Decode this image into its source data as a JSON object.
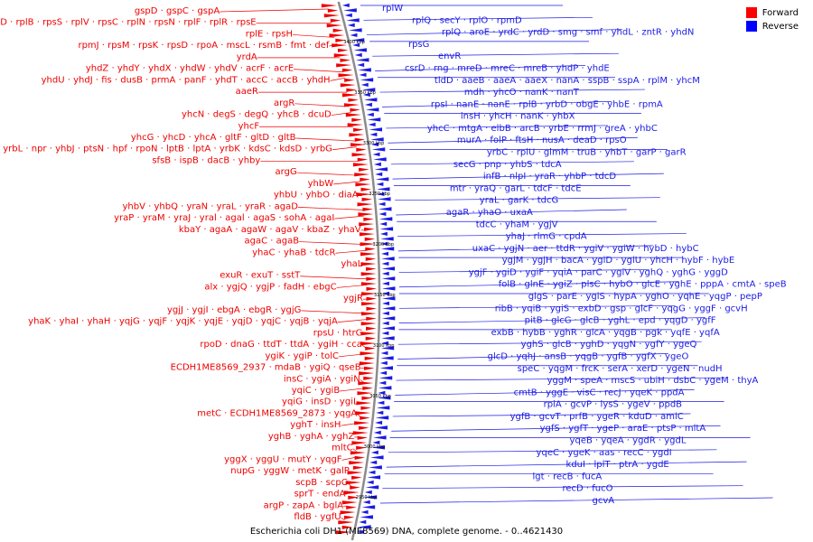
{
  "caption": "Escherichia coli DH1 (ME8569) DNA, complete genome. - 0..4621430",
  "legend": [
    {
      "label": "Forward",
      "color": "#ff0000"
    },
    {
      "label": "Reverse",
      "color": "#0000ff"
    }
  ],
  "colors": {
    "forward": "#ee0000",
    "reverse": "#1a1ae6",
    "backbone": "#8c8c8c"
  },
  "coordinate_labels": [
    "3400 kbp",
    "3350 kbp",
    "3300 kbp",
    "3250 kbp",
    "3200 kbp",
    "3150 kbp",
    "3100 kbp",
    "3050 kbp",
    "3000 kbp",
    "2950 kbp"
  ],
  "forward_labels": [
    "gspD · gspC · gspA",
    "rplD · rplB · rpsS · rplV · rpsC · rplN · rpsN · rplF · rplR · rpsE",
    "rplE · rpsH",
    "rpmJ · rpsM · rpsK · rpsD · rpoA · mscL · rsmB · fmt · def",
    "yrdA",
    "yhdZ · yhdY · yhdX · yhdW · yhdV · acrF · acrE",
    "yhdU · yhdJ · fis · dusB · prmA · panF · yhdT · accC · accB · yhdH",
    "aaeR",
    "argR",
    "yhcN · degS · degQ · yhcB · dcuD",
    "yhcF",
    "yhcG · yhcD · yhcA · gltF · gltD · gltB",
    "yrbL · npr · yhbJ · ptsN · hpf · rpoN · lptB · lptA · yrbK · kdsC · kdsD · yrbG",
    "sfsB · ispB · dacB · yhby",
    "argG",
    "yhbW",
    "yhbU · yhbO · diaA",
    "yhbV · yhbQ · yraN · yraL · yraR · agaD",
    "yraP · yraM · yraJ · yral · agal · agaS · sohA · agaI",
    "kbaY · agaA · agaW · agaV · kbaZ · yhaV",
    "agaC · agaB",
    "yhaC · yhaB · tdcR",
    "yhaL",
    "exuR · exuT · sstT",
    "alx · ygjQ · ygjP · fadH · ebgC",
    "ygjR",
    "ygjJ · ygjI · ebgA · ebgR · ygjG",
    "yhaK · yhaI · yhaH · yqjG · yqjF · yqjK · yqjE · yqjD · yqjC · yqjB · yqjA",
    "rpsU · htrG",
    "rpoD · dnaG · ttdT · ttdA · ygiH · cca",
    "ygiK · ygiP · tolC",
    "ECDH1ME8569_2937 · mdaB · ygiQ · qseB",
    "insC · ygiA · ygiN",
    "yqiC · ygiB",
    "yqiG · insD · ygiL",
    "metC · ECDH1ME8569_2873 · yqgA",
    "yghT · insH",
    "yghB · yghA · yghZ",
    "mltC",
    "yggX · yggU · mutY · yqgF",
    "nupG · yggW · metK · galP",
    "scpB · scpC",
    "sprT · endA",
    "argP · zapA · bglA",
    "fldB · ygfU"
  ],
  "reverse_labels": [
    "rplW",
    "rplQ · secY · rplO · rpmD",
    "rplQ · aroE · yrdC · yrdD · smg · smf · yhdL · zntR · yhdN",
    "rpsG",
    "envR",
    "csrD · rng · mreD · mreC · mreB · yhdP · yhdE",
    "tldD · aaeB · aaeA · aaeX · nanA · sspB · sspA · rplM · yhcM",
    "mdh · yhcO · nanK · nanT",
    "rpsI · nanE · nanE · rplB · yrbD · obgE · yhbE · rpmA",
    "insH · yhcH · nanK · yhbX",
    "yhcC · mtgA · elbB · arcB · yrbE · rrmJ · greA · yhbC",
    "murA · folP · ftsH · nusA · deaD · rpsO",
    "yrbC · rplU · glmM · truB · yhbT · garP · garR",
    "secG · pnp · yhbS · tdcA",
    "infB · nlpI · yraR · yhbP · tdcD",
    "mtr · yraQ · garL · tdcF · tdcE",
    "yraL · garK · tdcG",
    "agaR · yhaO · uxaA",
    "tdcC · yhaM · ygjV",
    "yhaJ · rlmG · cpdA",
    "uxaC · ygjN · aer · ttdR · ygiV · ygiW · hybD · hybC",
    "ygjM · ygjH · bacA · ygiD · ygiU · yhcH · hybF · hybE",
    "ygjF · ygiD · ygiF · yqiA · parC · ygiV · yghQ · yghG · yggD",
    "folB · glnE · ygiZ · plsC · hybO · glcE · yghE · pppA · cmtA · speB",
    "glgS · parE · ygiS · hypA · yghO · yqhE · yqgP · pepP",
    "ribB · yqiB · ygiS · exbD · gsp · glcF · yqgG · yggF · gcvH",
    "pitB · glcG · glcB · yghL · epd · yqgD · ygfF",
    "exbB · hybB · yghR · glcA · yqgB · pgk · yqfE · yqfA",
    "yghS · glcB · yghD · yqgN · ygfY · ygeQ",
    "glcD · yqhJ · ansB · yqgB · ygfB · ygfX · ygeO",
    "speC · yqgM · frcK · serA · xerD · ygeN · nudH",
    "yggM · speA · mscS · ubiH · dsbC · ygeM · thyA",
    "cmtB · yggE · visC · recJ · yqeK · ppdA",
    "rpiA · gcvP · lysS · ygeV · ppdB",
    "ygfB · gcvT · prfB · ygeR · kduD · amiC",
    "ygfS · ygfT · ygeP · araE · ptsP · mltA",
    "yqeB · yqeA · ygdR · ygdL",
    "yqeC · ygeK · aas · recC · ygdI",
    "kduI · lplT · ptrA · ygdE",
    "lgt · recB · fucA",
    "recD · fucO",
    "gcvA"
  ]
}
